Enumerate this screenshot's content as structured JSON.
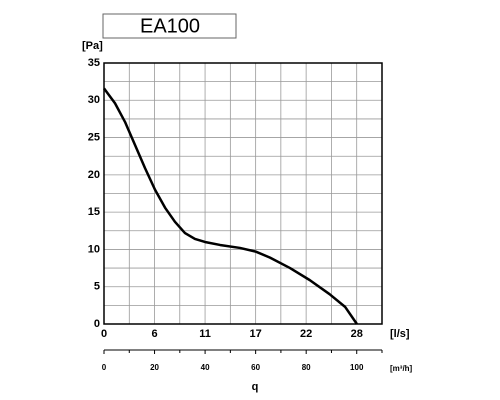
{
  "chart_data": {
    "type": "line",
    "title": "EA100",
    "y_label": "[Pa]",
    "x_label": "[l/s]",
    "x2_label": "[m³/h]",
    "x2_title": "q",
    "x": [
      0,
      1.21,
      2.31,
      3.41,
      4.51,
      5.61,
      6.71,
      7.8,
      8.9,
      10.0,
      11.1,
      12.75,
      14.95,
      16.7,
      18.25,
      20.45,
      22.6,
      24.8,
      26.5,
      27.8
    ],
    "series": [
      {
        "color": "#000000",
        "values": [
          31.6,
          29.6,
          27.1,
          24.0,
          20.9,
          18.0,
          15.6,
          13.7,
          12.2,
          11.4,
          11.0,
          10.6,
          10.2,
          9.7,
          8.9,
          7.5,
          5.9,
          4.0,
          2.3,
          0
        ]
      }
    ],
    "xlim": [
      0,
      30.56
    ],
    "ylim": [
      0,
      35
    ],
    "xticks": [
      0,
      {
        "value": 5.56,
        "label": "6"
      },
      {
        "value": 11.11,
        "label": "11"
      },
      {
        "value": 16.67,
        "label": "17"
      },
      {
        "value": 22.22,
        "label": "22"
      },
      {
        "value": 27.78,
        "label": "28"
      }
    ],
    "yticks": [
      0,
      5,
      10,
      15,
      20,
      25,
      30,
      35
    ],
    "xgrid": [
      2.78,
      8.33,
      13.89,
      19.44,
      25.0,
      30.56
    ],
    "ygrid": [
      2.5,
      7.5,
      12.5,
      17.5,
      22.5,
      27.5,
      32.5
    ],
    "x2lim": [
      0,
      110
    ],
    "x2ticks": [
      0,
      20,
      40,
      60,
      80,
      100
    ],
    "x2minor": [
      10,
      30,
      50,
      70,
      90,
      110
    ],
    "grid": true
  }
}
